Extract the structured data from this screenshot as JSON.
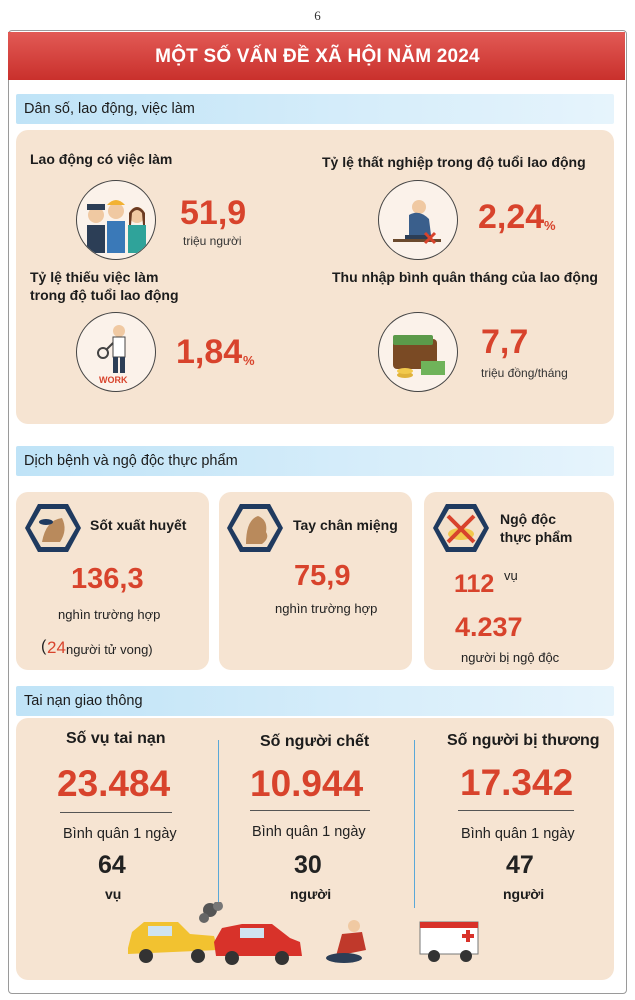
{
  "page_number": "6",
  "title": "MỘT SỐ VẤN ĐỀ XÃ HỘI NĂM 2024",
  "section1": {
    "heading": "Dân số, lao động, việc làm",
    "employed": {
      "label": "Lao động có việc làm",
      "value": "51,9",
      "unit": "triệu người"
    },
    "unemployment": {
      "label": "Tỷ lệ thất nghiệp trong độ tuổi lao động",
      "value": "2,24",
      "unit": "%"
    },
    "underemployment": {
      "label_line1": "Tỷ lệ thiếu việc làm",
      "label_line2": "trong độ tuổi lao động",
      "value": "1,84",
      "unit": "%"
    },
    "income": {
      "label": "Thu nhập bình quân tháng của lao động",
      "value": "7,7",
      "unit": "triệu đồng/tháng"
    },
    "icon_text": "WORK"
  },
  "section2": {
    "heading": "Dịch bệnh và ngộ độc thực phẩm",
    "dengue": {
      "label": "Sốt xuất huyết",
      "value": "136,3",
      "unit": "nghìn trường hợp",
      "deaths_open": "(",
      "deaths_value": "24",
      "deaths_text": " người tử vong)"
    },
    "hfmd": {
      "label": "Tay chân miệng",
      "value": "75,9",
      "unit": "nghìn trường hợp"
    },
    "poison": {
      "label_line1": "Ngộ độc",
      "label_line2": "thực phẩm",
      "cases_value": "112",
      "cases_unit": "vụ",
      "people_value": "4.237",
      "people_unit": "người bị ngộ độc"
    }
  },
  "section3": {
    "heading": "Tai nạn giao thông",
    "columns": [
      {
        "label": "Số vụ tai nạn",
        "value": "23.484",
        "avg_label": "Bình quân 1 ngày",
        "avg_value": "64",
        "avg_unit": "vụ"
      },
      {
        "label": "Số người chết",
        "value": "10.944",
        "avg_label": "Bình quân 1 ngày",
        "avg_value": "30",
        "avg_unit": "người"
      },
      {
        "label": "Số người bị thương",
        "value": "17.342",
        "avg_label": "Bình quân 1 ngày",
        "avg_value": "47",
        "avg_unit": "người"
      }
    ]
  },
  "colors": {
    "banner": "#c9302c",
    "accent_red": "#d8432c",
    "panel": "#f6e4d2",
    "section_head": "#bfe3f7",
    "hex_navy": "#1f3a5f"
  }
}
